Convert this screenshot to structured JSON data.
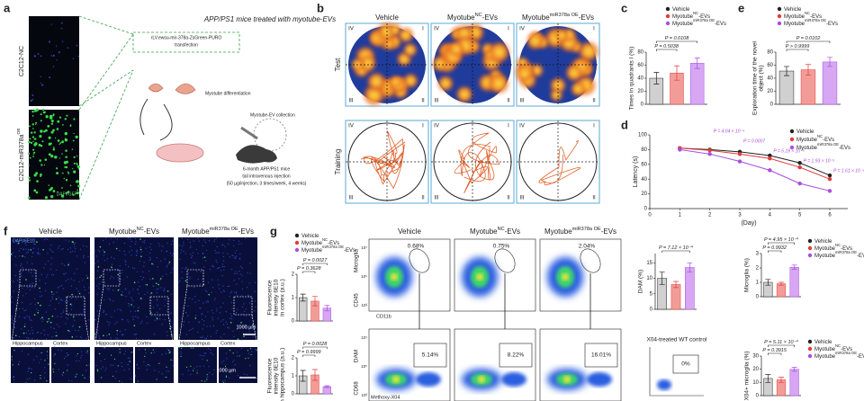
{
  "panel_labels": [
    "a",
    "b",
    "c",
    "d",
    "e",
    "f",
    "g"
  ],
  "groups": [
    {
      "name": [
        "Vehicle"
      ],
      "color": "#222222",
      "bar": "#d0d0d0"
    },
    {
      "name": [
        "Myotube",
        "NC",
        "-EVs"
      ],
      "color": "#e23b3b",
      "bar": "#f29c98"
    },
    {
      "name": [
        "Myotube",
        "miR378a OE",
        "-EVs"
      ],
      "color": "#a84ee0",
      "bar": "#d7a7f3"
    }
  ],
  "a": {
    "title": "APP/PS1 mice treated with myotube-EVs",
    "rows": [
      [
        "C2C12-NC"
      ],
      [
        "C2C12-miR378a",
        "OE"
      ]
    ],
    "stain": "DAPI/GFP",
    "steps": [
      "rLV.ewsu-mir-378a-ZsGreen-PURO",
      "transfection",
      "Myotube differentiation",
      "Myotube-EV collection",
      "6-month APP/PS1 mice",
      "tail intravenous injection",
      "(50 µg/injection, 3 times/week, 4 weeks)"
    ]
  },
  "b": {
    "columns": [
      [
        "Vehicle"
      ],
      [
        "Myotube",
        "NC",
        "-EVs"
      ],
      [
        "Myotube",
        "miR378a OE",
        "-EVs"
      ]
    ],
    "rows": [
      "Test",
      "Training"
    ],
    "quadrants": [
      "IV",
      "I",
      "III",
      "II"
    ]
  },
  "c": {
    "ylabel": [
      "Times in quadrants I (%)"
    ],
    "values": [
      40,
      48,
      63
    ],
    "errors": [
      9,
      11,
      8
    ],
    "ylim": [
      0,
      80
    ],
    "yticks": [
      0,
      20,
      40,
      60,
      80
    ],
    "pvalues": [
      {
        "label": "P = 0.5038",
        "pair": [
          0,
          1
        ]
      },
      {
        "label": "P = 0.0108",
        "pair": [
          0,
          2
        ]
      }
    ]
  },
  "e": {
    "ylabel": [
      "Exploration time of the novel",
      "object (%)"
    ],
    "values": [
      51,
      53,
      65
    ],
    "errors": [
      7,
      8,
      7
    ],
    "ylim": [
      0,
      80
    ],
    "yticks": [
      0,
      20,
      40,
      60,
      80
    ],
    "pvalues": [
      {
        "label": "P > 0.9999",
        "pair": [
          0,
          1
        ]
      },
      {
        "label": "P = 0.0102",
        "pair": [
          0,
          2
        ]
      }
    ]
  },
  "d": {
    "ylabel": "Latency (s)",
    "xlabel": "(Day)",
    "x": [
      1,
      2,
      3,
      4,
      5,
      6
    ],
    "xlim": [
      0,
      6.6
    ],
    "xticks": [
      0,
      1,
      2,
      3,
      4,
      5,
      6
    ],
    "ylim": [
      0,
      100
    ],
    "yticks": [
      0,
      20,
      40,
      60,
      80,
      100
    ],
    "series": [
      {
        "values": [
          82,
          80,
          77,
          72,
          62,
          45
        ]
      },
      {
        "values": [
          82,
          79,
          74,
          68,
          56,
          40
        ]
      },
      {
        "values": [
          80,
          74,
          64,
          52,
          34,
          24
        ]
      }
    ],
    "annotations": [
      {
        "x": 2,
        "label": "P = 4.04 × 10⁻⁴"
      },
      {
        "x": 3,
        "label": "P = 0.0007"
      },
      {
        "x": 4,
        "label": "P = 5.18 × 10⁻⁵"
      },
      {
        "x": 5,
        "label": "P = 1.93 × 10⁻⁵"
      },
      {
        "x": 6,
        "label": "P = 1.61 × 10⁻⁴"
      }
    ]
  },
  "f": {
    "columns": [
      [
        "Vehicle"
      ],
      [
        "Myotube",
        "NC",
        "-EVs"
      ],
      [
        "Myotube",
        "miR378a OE",
        "-EVs"
      ]
    ],
    "stain": "DAPI/6E10",
    "scale": "1000 µm",
    "regions": [
      "Hippocampus",
      "Cortex"
    ],
    "charts": [
      {
        "ylabel": [
          "Fluorescence",
          "intensity 6E10",
          "in cortex (a.u.)"
        ],
        "values": [
          1.0,
          0.85,
          0.55
        ],
        "errors": [
          0.15,
          0.2,
          0.12
        ],
        "ylim": [
          0,
          2
        ],
        "yticks": [
          0,
          1,
          2
        ],
        "pvalues": [
          {
            "label": "P = 0.3628",
            "pair": [
              0,
              1
            ]
          },
          {
            "label": "P = 0.0027",
            "pair": [
              0,
              2
            ]
          }
        ]
      },
      {
        "ylabel": [
          "Fluorescence",
          "intensity 6E10",
          "in hippocampus (a.u.)"
        ],
        "values": [
          1.0,
          1.05,
          0.4
        ],
        "errors": [
          0.3,
          0.3,
          0.05
        ],
        "ylim": [
          0,
          2
        ],
        "yticks": [
          0,
          1,
          2
        ],
        "pvalues": [
          {
            "label": "P = 0.9999",
            "pair": [
              0,
              1
            ]
          },
          {
            "label": "P = 0.0028",
            "pair": [
              0,
              2
            ]
          }
        ]
      }
    ]
  },
  "g": {
    "columns": [
      [
        "Vehicle"
      ],
      [
        "Myotube",
        "NC",
        "-EVs"
      ],
      [
        "Myotube",
        "miR378a OE",
        "-EVs"
      ]
    ],
    "axes": {
      "top_y": "Microglia",
      "top_y2": "CD45",
      "top_x": "CD11b",
      "bottom_y": "DAM",
      "bottom_y2": "CD68",
      "bottom_x": "Methoxy-X04"
    },
    "flow_ticks": [
      "10³",
      "10⁵",
      "10⁷"
    ],
    "top_pct": [
      "0.68%",
      "0.75%",
      "2.04%"
    ],
    "bottom_pct": [
      "5.14%",
      "8.22%",
      "16.01%"
    ],
    "control": {
      "title": "X04-treated WT control",
      "pct": "0%"
    },
    "charts": [
      {
        "ylabel": [
          "DAM (%)"
        ],
        "values": [
          10,
          8,
          13.5
        ],
        "errors": [
          2,
          1,
          1.5
        ],
        "ylim": [
          0,
          18
        ],
        "yticks": [
          0,
          5,
          10,
          15
        ],
        "pvalues": [
          {
            "label": "P = 7.12 × 10⁻⁴",
            "pair": [
              0,
              2
            ]
          }
        ]
      },
      {
        "ylabel": [
          "Microglia (%)"
        ],
        "values": [
          1.0,
          0.9,
          2.05
        ],
        "errors": [
          0.2,
          0.1,
          0.15
        ],
        "ylim": [
          0,
          3
        ],
        "yticks": [
          0,
          1,
          2,
          3
        ],
        "pvalues": [
          {
            "label": "P = 0.9932",
            "pair": [
              0,
              1
            ]
          },
          {
            "label": "P = 4.95 × 10⁻⁴",
            "pair": [
              0,
              2
            ]
          }
        ]
      },
      {
        "ylabel": [
          "X04+ microglia (%)"
        ],
        "values": [
          13,
          12,
          20
        ],
        "errors": [
          3,
          2,
          1.5
        ],
        "ylim": [
          0,
          30
        ],
        "yticks": [
          0,
          10,
          20,
          30
        ],
        "pvalues": [
          {
            "label": "P = 0.3915",
            "pair": [
              0,
              1
            ]
          },
          {
            "label": "P = 5.11 × 10⁻⁴",
            "pair": [
              0,
              2
            ]
          }
        ]
      }
    ]
  }
}
